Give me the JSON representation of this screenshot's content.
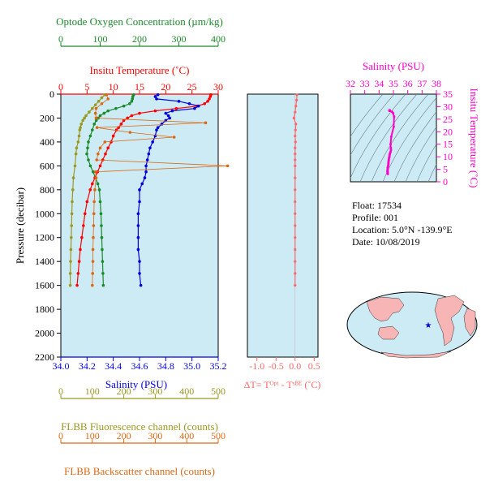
{
  "colors": {
    "oxygen": "#1a8a2a",
    "temperature": "#ff0000",
    "salinity": "#0000dd",
    "fluorescence": "#999922",
    "backscatter": "#dd6611",
    "delta": "#ff6666",
    "ts": "#ff00cc",
    "panel_bg": "#cdebf5",
    "land": "#f7b5b5"
  },
  "info": {
    "float": "Float:  17534",
    "profile": "Profile:  001",
    "location": "Location:  5.0°N  -139.9°E",
    "date": "Date:  10/08/2019"
  },
  "chart_data": [
    {
      "type": "line",
      "panel": "main-profile",
      "axes": {
        "pressure": {
          "label": "Pressure (decibar)",
          "ticks": [
            0,
            200,
            400,
            600,
            800,
            1000,
            1200,
            1400,
            1600,
            1800,
            2000,
            2200
          ],
          "range": [
            0,
            2200
          ],
          "inverted": true
        },
        "oxygen": {
          "label": "Optode Oxygen Concentration (µm/kg)",
          "ticks": [
            0,
            100,
            200,
            300,
            400
          ],
          "range": [
            0,
            400
          ]
        },
        "temperature": {
          "label": "Insitu Temperature (˚C)",
          "ticks": [
            0,
            5,
            10,
            15,
            20,
            25,
            30
          ],
          "range": [
            0,
            30
          ]
        },
        "salinity": {
          "label": "Salinity (PSU)",
          "ticks": [
            "34.0",
            "34.2",
            "34.4",
            "34.6",
            "34.8",
            "35.0",
            "35.2"
          ],
          "range": [
            34.0,
            35.2
          ]
        },
        "fluorescence": {
          "label": "FLBB Fluorescence channel (counts)",
          "ticks": [
            0,
            100,
            200,
            300,
            400,
            500
          ],
          "range": [
            0,
            500
          ]
        },
        "backscatter": {
          "label": "FLBB Backscatter channel (counts)",
          "ticks": [
            0,
            100,
            200,
            300,
            400,
            500
          ],
          "range": [
            0,
            500
          ]
        }
      },
      "series": [
        {
          "key": "oxygen",
          "axis": "oxygen",
          "pressure": [
            5,
            20,
            40,
            60,
            80,
            100,
            120,
            140,
            160,
            180,
            200,
            220,
            250,
            300,
            350,
            400,
            450,
            500,
            550,
            600,
            650,
            700,
            750,
            800,
            900,
            1000,
            1100,
            1200,
            1300,
            1400,
            1500,
            1600
          ],
          "values": [
            185,
            183,
            182,
            180,
            175,
            160,
            140,
            120,
            110,
            100,
            95,
            90,
            85,
            80,
            75,
            70,
            68,
            66,
            70,
            75,
            82,
            88,
            94,
            98,
            100,
            102,
            103,
            104,
            105,
            106,
            107,
            108
          ]
        },
        {
          "key": "temperature",
          "axis": "temperature",
          "pressure": [
            5,
            20,
            40,
            60,
            80,
            100,
            120,
            140,
            160,
            180,
            200,
            220,
            250,
            280,
            300,
            350,
            400,
            450,
            500,
            550,
            600,
            650,
            700,
            750,
            800,
            900,
            1000,
            1100,
            1200,
            1300,
            1400,
            1500,
            1600
          ],
          "values": [
            28.6,
            28.5,
            28.3,
            28.0,
            27.4,
            26.0,
            22.0,
            18.0,
            15.0,
            13.5,
            12.7,
            12.0,
            11.5,
            11.0,
            10.6,
            10.0,
            9.6,
            9.0,
            8.5,
            8.0,
            7.5,
            7.0,
            6.5,
            6.0,
            5.6,
            5.0,
            4.6,
            4.3,
            4.0,
            3.7,
            3.5,
            3.3,
            3.1
          ]
        },
        {
          "key": "salinity",
          "axis": "salinity",
          "pressure": [
            5,
            20,
            40,
            60,
            80,
            100,
            120,
            140,
            160,
            180,
            200,
            220,
            250,
            280,
            300,
            350,
            400,
            450,
            500,
            550,
            600,
            650,
            700,
            750,
            800,
            900,
            1000,
            1100,
            1200,
            1300,
            1400,
            1500,
            1600
          ],
          "values": [
            34.74,
            34.72,
            34.73,
            34.9,
            34.98,
            35.05,
            35.02,
            34.85,
            34.8,
            34.82,
            34.83,
            34.8,
            34.77,
            34.74,
            34.73,
            34.72,
            34.7,
            34.68,
            34.67,
            34.66,
            34.65,
            34.65,
            34.64,
            34.62,
            34.6,
            34.6,
            34.59,
            34.59,
            34.59,
            34.59,
            34.6,
            34.6,
            34.61
          ]
        },
        {
          "key": "fluorescence",
          "axis": "fluorescence",
          "pressure": [
            5,
            30,
            60,
            90,
            120,
            150,
            180,
            200,
            220,
            250,
            280,
            300,
            350,
            400,
            450,
            500,
            600,
            700,
            800,
            900,
            1000,
            1100,
            1200,
            1300,
            1400,
            1500,
            1600
          ],
          "values": [
            140,
            130,
            120,
            110,
            100,
            90,
            80,
            75,
            70,
            65,
            62,
            60,
            58,
            55,
            50,
            48,
            45,
            40,
            38,
            36,
            35,
            34,
            33,
            32,
            31,
            30,
            30
          ]
        },
        {
          "key": "backscatter",
          "axis": "backscatter",
          "pressure": [
            5,
            40,
            80,
            120,
            160,
            200,
            240,
            280,
            320,
            360,
            400,
            450,
            500,
            550,
            600,
            650,
            700,
            800,
            900,
            1000,
            1100,
            1200,
            1300,
            1400,
            1500,
            1600
          ],
          "values": [
            145,
            150,
            130,
            112,
            110,
            112,
            460,
            115,
            220,
            360,
            140,
            125,
            118,
            114,
            530,
            110,
            112,
            108,
            106,
            105,
            104,
            103,
            102,
            102,
            101,
            100
          ]
        }
      ]
    },
    {
      "type": "line",
      "panel": "delta-t",
      "axes": {
        "x": {
          "label": "ΔT= Tᴼᵖᵗ - Tˢᴮᴱ (˚C)",
          "ticks": [
            "-1.0",
            "-0.5",
            "0.0",
            "0.5"
          ],
          "range": [
            -1.25,
            0.6
          ]
        },
        "pressure": {
          "range": [
            0,
            2200
          ],
          "inverted": true
        }
      },
      "series": [
        {
          "key": "delta",
          "pressure": [
            5,
            50,
            100,
            150,
            200,
            250,
            300,
            350,
            400,
            450,
            500,
            550,
            600,
            700,
            800,
            900,
            1000,
            1100,
            1200,
            1300,
            1400,
            1500,
            1600
          ],
          "values": [
            0.05,
            0.04,
            0.02,
            0.0,
            -0.03,
            0.02,
            0.01,
            0.0,
            0.01,
            0.0,
            0.0,
            0.0,
            0.0,
            0.0,
            0.0,
            0.0,
            0.0,
            0.0,
            0.0,
            0.0,
            0.0,
            0.0,
            0.0
          ]
        }
      ]
    },
    {
      "type": "line",
      "panel": "t-s-diagram",
      "axes": {
        "x": {
          "label": "Salinity (PSU)",
          "ticks": [
            32,
            33,
            34,
            35,
            36,
            37,
            38
          ],
          "range": [
            32,
            38
          ]
        },
        "y": {
          "label": "Insitu Temperature (˚C)",
          "ticks": [
            0,
            5,
            10,
            15,
            20,
            25,
            30,
            35
          ],
          "range": [
            0,
            35
          ]
        }
      },
      "series": [
        {
          "key": "ts",
          "salinity": [
            34.74,
            34.72,
            34.73,
            34.9,
            34.98,
            35.05,
            35.02,
            34.85,
            34.8,
            34.82,
            34.83,
            34.8,
            34.77,
            34.74,
            34.73,
            34.72,
            34.7,
            34.68,
            34.67,
            34.66,
            34.65,
            34.65,
            34.64,
            34.62,
            34.6,
            34.6,
            34.59,
            34.59,
            34.59,
            34.59,
            34.6,
            34.6,
            34.61
          ],
          "temperature": [
            28.6,
            28.5,
            28.3,
            28.0,
            27.4,
            26.0,
            22.0,
            18.0,
            15.0,
            13.5,
            12.7,
            12.0,
            11.5,
            11.0,
            10.6,
            10.0,
            9.6,
            9.0,
            8.5,
            8.0,
            7.5,
            7.0,
            6.5,
            6.0,
            5.6,
            5.0,
            4.6,
            4.3,
            4.0,
            3.7,
            3.5,
            3.3,
            3.1
          ]
        }
      ]
    }
  ]
}
